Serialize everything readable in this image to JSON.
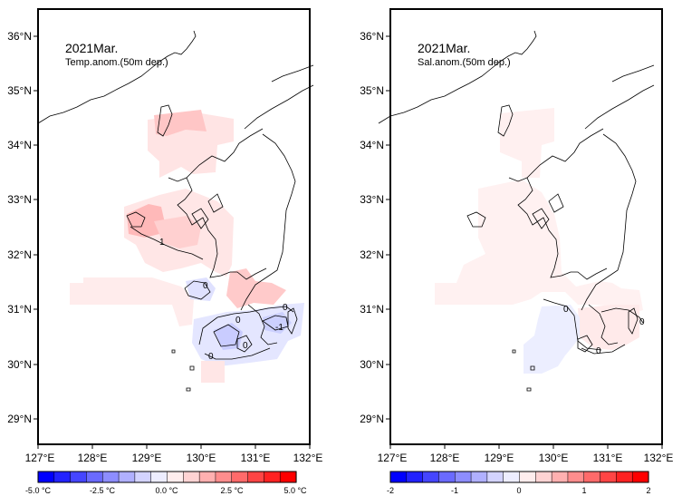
{
  "lat_ticks": [
    "36°N",
    "35°N",
    "34°N",
    "33°N",
    "32°N",
    "31°N",
    "30°N",
    "29°N"
  ],
  "lon_ticks": [
    "127°E",
    "128°E",
    "129°E",
    "130°E",
    "131°E",
    "132°E"
  ],
  "left": {
    "title": "2021Mar.",
    "subtitle": "Temp.anom.(50m dep.)",
    "contour_labels": [
      "1",
      "0",
      "0",
      "0",
      "0",
      "-1",
      "0"
    ],
    "colorbar_labels": [
      "-5.0 °C",
      "-2.5 °C",
      "0.0 °C",
      "2.5 °C",
      "5.0 °C"
    ],
    "colorbar_min": -5.0,
    "colorbar_max": 5.0
  },
  "right": {
    "title": "2021Mar.",
    "subtitle": "Sal.anom.(50m dep.)",
    "contour_labels": [
      "0",
      "0",
      "0"
    ],
    "colorbar_labels": [
      "-2",
      "-1",
      "0",
      "1",
      "2"
    ],
    "colorbar_min": -2,
    "colorbar_max": 2
  },
  "colors": {
    "colorbar": [
      "#0000ff",
      "#2222ff",
      "#4545ff",
      "#6a6aff",
      "#8d8dff",
      "#b0b0ff",
      "#d3d3ff",
      "#ededff",
      "#ffeded",
      "#ffd3d3",
      "#ffb0b0",
      "#ff8d8d",
      "#ff6a6a",
      "#ff4545",
      "#ff2222",
      "#ff0000"
    ]
  }
}
